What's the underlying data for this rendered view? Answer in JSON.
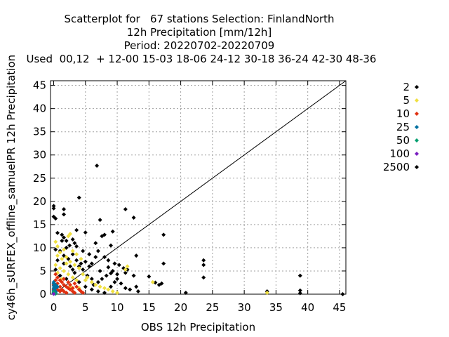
{
  "chart_data": {
    "type": "scatter",
    "title_lines": [
      "Scatterplot for   67 stations Selection: FinlandNorth",
      "12h Precipitation [mm/12h]",
      "Period: 20220702-20220709",
      "Used  00,12  + 12-00 15-03 18-06 24-12 30-18 36-24 42-30 48-36"
    ],
    "xlabel": "OBS 12h Precipitation",
    "ylabel": "cy46h_sURFEX_offline_samuelPR 12h Precipitation",
    "xlim": [
      -0.5,
      46
    ],
    "ylim": [
      0,
      46
    ],
    "xticks": [
      0,
      5,
      10,
      15,
      20,
      25,
      30,
      35,
      40,
      45
    ],
    "yticks": [
      0,
      5,
      10,
      15,
      20,
      25,
      30,
      35,
      40,
      45
    ],
    "grid": true,
    "legend_position": "right",
    "diagonal": true,
    "series": [
      {
        "name": "2",
        "color": "#000000",
        "points": [
          [
            0,
            19
          ],
          [
            0,
            18.5
          ],
          [
            0,
            16.7
          ],
          [
            0.3,
            16.3
          ],
          [
            1.6,
            17.2
          ],
          [
            4,
            20.8
          ],
          [
            1.6,
            18.3
          ],
          [
            0.6,
            13.2
          ],
          [
            1.3,
            12.8
          ],
          [
            1.6,
            12.2
          ],
          [
            2,
            11.5
          ],
          [
            2.5,
            10.5
          ],
          [
            3,
            11.8
          ],
          [
            3.3,
            11
          ],
          [
            3.6,
            10.3
          ],
          [
            0.3,
            9.6
          ],
          [
            1,
            9.3
          ],
          [
            1.6,
            8.3
          ],
          [
            2.3,
            7.6
          ],
          [
            3,
            8.6
          ],
          [
            3.6,
            7.3
          ],
          [
            4.3,
            6.6
          ],
          [
            5,
            7
          ],
          [
            5.6,
            6
          ],
          [
            6,
            6.6
          ],
          [
            6.6,
            8
          ],
          [
            7,
            9.3
          ],
          [
            7.6,
            12.5
          ],
          [
            8,
            12.8
          ],
          [
            7.3,
            16
          ],
          [
            6.6,
            11
          ],
          [
            9,
            10.5
          ],
          [
            9.3,
            13.5
          ],
          [
            8,
            8
          ],
          [
            8.6,
            7.3
          ],
          [
            9.6,
            6.6
          ],
          [
            10.3,
            6.3
          ],
          [
            11,
            5.6
          ],
          [
            11.6,
            5.3
          ],
          [
            13,
            8.3
          ],
          [
            11.3,
            18.3
          ],
          [
            12.6,
            16.5
          ],
          [
            9,
            4.5
          ],
          [
            8.3,
            4
          ],
          [
            7.6,
            3.3
          ],
          [
            7,
            2.6
          ],
          [
            10,
            3.3
          ],
          [
            10.6,
            2.3
          ],
          [
            11.3,
            1.3
          ],
          [
            12,
            1
          ],
          [
            13,
            1.6
          ],
          [
            13.3,
            0.6
          ],
          [
            15,
            3.8
          ],
          [
            16,
            2.5
          ],
          [
            16.6,
            2
          ],
          [
            17,
            2.3
          ],
          [
            17.3,
            6.6
          ],
          [
            17.3,
            12.8
          ],
          [
            20.8,
            0.3
          ],
          [
            23.6,
            7.3
          ],
          [
            23.6,
            6.3
          ],
          [
            23.6,
            3.6
          ],
          [
            33.6,
            0.6
          ],
          [
            38.8,
            4
          ],
          [
            38.8,
            0.8
          ],
          [
            38.8,
            0.2
          ],
          [
            45.5,
            0
          ],
          [
            6.8,
            27.7
          ],
          [
            5,
            13.3
          ],
          [
            3.6,
            13.8
          ],
          [
            1.3,
            11.5
          ],
          [
            2,
            10
          ],
          [
            4.6,
            5.3
          ],
          [
            5.3,
            4
          ],
          [
            6,
            3.3
          ],
          [
            6.3,
            2
          ],
          [
            7.3,
            5
          ],
          [
            8.6,
            5.8
          ],
          [
            9.3,
            5
          ],
          [
            10,
            4.3
          ],
          [
            3.3,
            4.6
          ],
          [
            2.6,
            6
          ],
          [
            1.6,
            6.6
          ],
          [
            0.6,
            7.3
          ],
          [
            0.3,
            5.3
          ],
          [
            1,
            4
          ],
          [
            2,
            3.3
          ],
          [
            4,
            2.6
          ],
          [
            5,
            1.6
          ],
          [
            6,
            1
          ],
          [
            7,
            0.6
          ],
          [
            8,
            0.3
          ],
          [
            9,
            1.6
          ],
          [
            9.6,
            2.6
          ],
          [
            5.6,
            8.6
          ],
          [
            4.6,
            9.3
          ],
          [
            4,
            6
          ],
          [
            3,
            5.3
          ],
          [
            12.6,
            4
          ],
          [
            11.3,
            4.6
          ]
        ]
      },
      {
        "name": "5",
        "color": "#f0e040",
        "points": [
          [
            0.3,
            11.3
          ],
          [
            0.6,
            10.3
          ],
          [
            1,
            9
          ],
          [
            1.6,
            9.6
          ],
          [
            2.3,
            12.5
          ],
          [
            2.6,
            13
          ],
          [
            3,
            9.3
          ],
          [
            3.6,
            8.6
          ],
          [
            4.3,
            7.6
          ],
          [
            1.3,
            7.6
          ],
          [
            0.6,
            8.3
          ],
          [
            2,
            8
          ],
          [
            2.6,
            7
          ],
          [
            3.3,
            6.3
          ],
          [
            4,
            5.6
          ],
          [
            4.6,
            4.3
          ],
          [
            5.3,
            3.6
          ],
          [
            6,
            2.6
          ],
          [
            6.6,
            2
          ],
          [
            7.3,
            1.6
          ],
          [
            8,
            1.3
          ],
          [
            8.6,
            1
          ],
          [
            9.3,
            0.6
          ],
          [
            10,
            0.3
          ],
          [
            0.3,
            6.3
          ],
          [
            1,
            5.6
          ],
          [
            1.6,
            5
          ],
          [
            2.3,
            4.3
          ],
          [
            3,
            3.6
          ],
          [
            3.6,
            3
          ],
          [
            11.6,
            6
          ],
          [
            11.3,
            5.3
          ],
          [
            15.6,
            2.6
          ],
          [
            33.6,
            0.3
          ],
          [
            5,
            3
          ],
          [
            2,
            6.6
          ],
          [
            1.3,
            3.3
          ],
          [
            0.6,
            4.6
          ],
          [
            4,
            1.3
          ],
          [
            2.6,
            1.6
          ]
        ]
      },
      {
        "name": "10",
        "color": "#e03010",
        "points": [
          [
            0.3,
            4.3
          ],
          [
            0.6,
            3.6
          ],
          [
            1,
            3
          ],
          [
            1.3,
            2.6
          ],
          [
            1.6,
            2
          ],
          [
            2,
            1.6
          ],
          [
            2.3,
            1.3
          ],
          [
            2.6,
            1
          ],
          [
            3,
            0.6
          ],
          [
            3.3,
            0.3
          ],
          [
            0.3,
            3
          ],
          [
            0.6,
            2.3
          ],
          [
            1,
            1.6
          ],
          [
            1.3,
            1
          ],
          [
            1.6,
            0.6
          ],
          [
            2,
            0.3
          ],
          [
            3.6,
            1.6
          ],
          [
            4,
            1
          ],
          [
            4.3,
            0.6
          ],
          [
            4.6,
            0.3
          ],
          [
            0.3,
            1.6
          ],
          [
            0.6,
            1
          ],
          [
            1,
            0.6
          ],
          [
            2.3,
            2.6
          ],
          [
            2.6,
            2
          ],
          [
            3,
            1.3
          ],
          [
            0,
            2
          ],
          [
            0,
            1
          ],
          [
            3.3,
            2.3
          ],
          [
            1.6,
            3.3
          ]
        ]
      },
      {
        "name": "25",
        "color": "#0070a0",
        "points": [
          [
            0,
            2.6
          ],
          [
            0,
            2.3
          ],
          [
            0,
            1.8
          ],
          [
            0,
            1.3
          ],
          [
            0.3,
            2
          ],
          [
            0.3,
            1.3
          ],
          [
            0.3,
            0.6
          ],
          [
            0.6,
            1.6
          ],
          [
            0,
            0.8
          ],
          [
            0.3,
            0.3
          ]
        ]
      },
      {
        "name": "50",
        "color": "#00a070",
        "points": [
          [
            0,
            0.5
          ],
          [
            0,
            0.2
          ],
          [
            0.3,
            0.1
          ],
          [
            0,
            0.35
          ]
        ]
      },
      {
        "name": "100",
        "color": "#7a1fc0",
        "points": [
          [
            0,
            0.05
          ]
        ]
      },
      {
        "name": "2500",
        "color": "#000000",
        "points": []
      }
    ]
  }
}
